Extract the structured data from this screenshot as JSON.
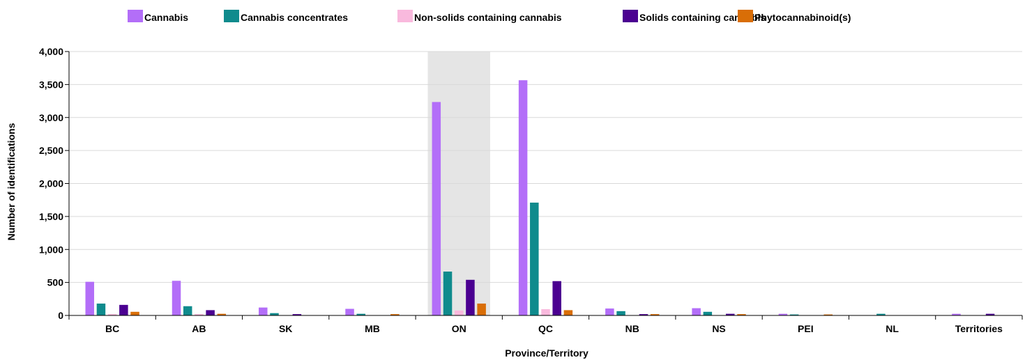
{
  "chart_data": {
    "type": "bar",
    "title": "",
    "xlabel": "Province/Territory",
    "ylabel": "Number of identifications",
    "ylim": [
      0,
      4000
    ],
    "yticks": [
      0,
      500,
      1000,
      1500,
      2000,
      2500,
      3000,
      3500,
      4000
    ],
    "ytick_labels": [
      "0",
      "500",
      "1,000",
      "1,500",
      "2,000",
      "2,500",
      "3,000",
      "3,500",
      "4,000"
    ],
    "grid": true,
    "legend_position": "top",
    "highlighted_category": "ON",
    "categories": [
      "BC",
      "AB",
      "SK",
      "MB",
      "ON",
      "QC",
      "NB",
      "NS",
      "PEI",
      "NL",
      "Territories"
    ],
    "series": [
      {
        "name": "Cannabis",
        "color": "#b36ef8",
        "values": [
          510,
          525,
          120,
          100,
          3235,
          3565,
          105,
          110,
          25,
          0,
          25
        ]
      },
      {
        "name": "Cannabis concentrates",
        "color": "#0f8b8d",
        "values": [
          180,
          140,
          35,
          25,
          665,
          1710,
          65,
          55,
          15,
          25,
          0
        ]
      },
      {
        "name": "Non-solids containing cannabis",
        "color": "#f9b9dd",
        "values": [
          20,
          20,
          5,
          5,
          75,
          95,
          5,
          5,
          0,
          0,
          0
        ]
      },
      {
        "name": "Solids containing cannabis",
        "color": "#4b0091",
        "values": [
          160,
          80,
          20,
          5,
          540,
          520,
          20,
          25,
          5,
          0,
          25
        ]
      },
      {
        "name": "Phytocannabinoid(s)",
        "color": "#d96e07",
        "values": [
          55,
          25,
          5,
          20,
          180,
          80,
          20,
          20,
          15,
          0,
          0
        ]
      }
    ]
  }
}
